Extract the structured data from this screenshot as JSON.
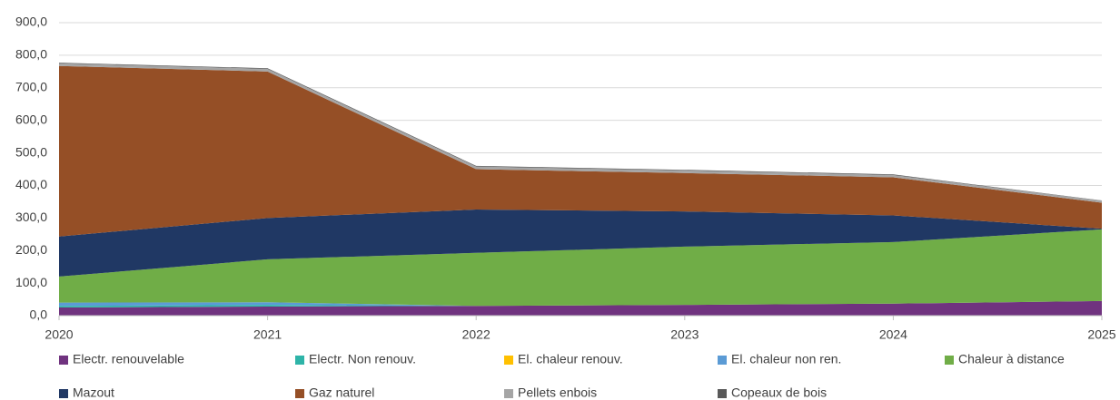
{
  "chart_data": {
    "type": "stacked_area",
    "categories": [
      "2020",
      "2021",
      "2022",
      "2023",
      "2024",
      "2025"
    ],
    "series": [
      {
        "name": "Electr. renouvelable",
        "color": "#70337f",
        "values": [
          25,
          28,
          30,
          33,
          37,
          45
        ]
      },
      {
        "name": "Electr. Non renouv.",
        "color": "#2eb4a8",
        "values": [
          5,
          5,
          0,
          0,
          0,
          0
        ]
      },
      {
        "name": "El. chaleur renouv.",
        "color": "#ffc000",
        "values": [
          0,
          0,
          0,
          0,
          0,
          0
        ]
      },
      {
        "name": "El. chaleur non ren.",
        "color": "#5b9bd5",
        "values": [
          10,
          8,
          0,
          0,
          0,
          0
        ]
      },
      {
        "name": "Chaleur à distance",
        "color": "#70ad47",
        "values": [
          80,
          132,
          163,
          179,
          189,
          220
        ]
      },
      {
        "name": "Mazout",
        "color": "#203864",
        "values": [
          123,
          127,
          133,
          108,
          82,
          2
        ]
      },
      {
        "name": "Gaz naturel",
        "color": "#954f26",
        "values": [
          524,
          450,
          124,
          118,
          117,
          80
        ]
      },
      {
        "name": "Pellets enbois",
        "color": "#a5a5a5",
        "values": [
          8,
          8,
          8,
          8,
          7,
          6
        ]
      },
      {
        "name": "Copeaux de bois",
        "color": "#595959",
        "values": [
          2,
          2,
          2,
          2,
          2,
          1
        ]
      }
    ],
    "ylim": [
      0,
      900
    ],
    "yticks": [
      {
        "value": 0,
        "label": "0,0"
      },
      {
        "value": 100,
        "label": "100,0"
      },
      {
        "value": 200,
        "label": "200,0"
      },
      {
        "value": 300,
        "label": "300,0"
      },
      {
        "value": 400,
        "label": "400,0"
      },
      {
        "value": 500,
        "label": "500,0"
      },
      {
        "value": 600,
        "label": "600,0"
      },
      {
        "value": 700,
        "label": "700,0"
      },
      {
        "value": 800,
        "label": "800,0"
      },
      {
        "value": 900,
        "label": "900,0"
      }
    ],
    "grid": true
  }
}
